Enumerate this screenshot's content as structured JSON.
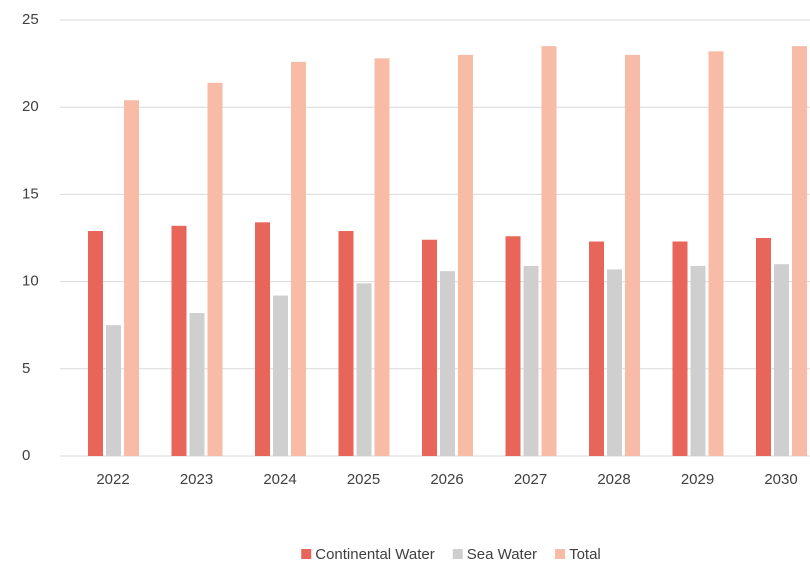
{
  "chart_data": {
    "type": "bar",
    "categories": [
      "2022",
      "2023",
      "2024",
      "2025",
      "2026",
      "2027",
      "2028",
      "2029",
      "2030"
    ],
    "series": [
      {
        "name": "Continental Water",
        "color": "#e8655a",
        "values": [
          12.9,
          13.2,
          13.4,
          12.9,
          12.4,
          12.6,
          12.3,
          12.3,
          12.5
        ]
      },
      {
        "name": "Sea Water",
        "color": "#d0cfcf",
        "values": [
          7.5,
          8.2,
          9.2,
          9.9,
          10.6,
          10.9,
          10.7,
          10.9,
          11.0
        ]
      },
      {
        "name": "Total",
        "color": "#f7bba6",
        "values": [
          20.4,
          21.4,
          22.6,
          22.8,
          23.0,
          23.5,
          23.0,
          23.2,
          23.5
        ]
      }
    ],
    "ylim": [
      0,
      25
    ],
    "yticks": [
      0,
      5,
      10,
      15,
      20,
      25
    ],
    "grid": true,
    "legend": "bottom"
  }
}
